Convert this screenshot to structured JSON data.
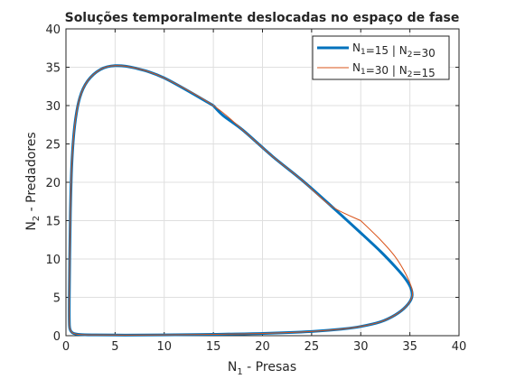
{
  "chart_data": {
    "type": "line",
    "title": "Soluções temporalmente deslocadas no espaço de fase",
    "xlabel": {
      "main": "N",
      "sub": "1",
      "rest": " - Presas"
    },
    "ylabel": {
      "main": "N",
      "sub": "2",
      "rest": " - Predadores"
    },
    "xlim": [
      0,
      40
    ],
    "ylim": [
      0,
      40
    ],
    "xticks": [
      "0",
      "5",
      "10",
      "15",
      "20",
      "25",
      "30",
      "35",
      "40"
    ],
    "yticks": [
      "0",
      "5",
      "10",
      "15",
      "20",
      "25",
      "30",
      "35",
      "40"
    ],
    "grid": true,
    "legend_position": "top-right",
    "series": [
      {
        "legend": [
          {
            "t": "N",
            "sub": false
          },
          {
            "t": "1",
            "sub": true
          },
          {
            "t": "=15 | N",
            "sub": false
          },
          {
            "t": "2",
            "sub": true
          },
          {
            "t": "=30",
            "sub": false
          }
        ],
        "color": "#0072bd",
        "width": 3,
        "points": [
          [
            15,
            30
          ],
          [
            10,
            33.6
          ],
          [
            7,
            34.9
          ],
          [
            5,
            35.2
          ],
          [
            3.5,
            34.7
          ],
          [
            2.2,
            33.2
          ],
          [
            1.4,
            31
          ],
          [
            0.9,
            27.5
          ],
          [
            0.6,
            22.5
          ],
          [
            0.45,
            16
          ],
          [
            0.38,
            10
          ],
          [
            0.34,
            5
          ],
          [
            0.34,
            2
          ],
          [
            0.4,
            0.9
          ],
          [
            0.7,
            0.35
          ],
          [
            1.5,
            0.15
          ],
          [
            3,
            0.1
          ],
          [
            6,
            0.08
          ],
          [
            10,
            0.1
          ],
          [
            15,
            0.18
          ],
          [
            20,
            0.3
          ],
          [
            25,
            0.55
          ],
          [
            28,
            0.85
          ],
          [
            30,
            1.2
          ],
          [
            32,
            1.8
          ],
          [
            33.5,
            2.7
          ],
          [
            34.6,
            3.8
          ],
          [
            35.2,
            5
          ],
          [
            35.1,
            6.2
          ],
          [
            34.5,
            7.5
          ],
          [
            33.5,
            9
          ],
          [
            32,
            11
          ],
          [
            30,
            13.4
          ],
          [
            27,
            16.9
          ],
          [
            24,
            20.3
          ],
          [
            21,
            23.4
          ],
          [
            18,
            26.8
          ],
          [
            16,
            28.7
          ],
          [
            15,
            30
          ]
        ]
      },
      {
        "legend": [
          {
            "t": "N",
            "sub": false
          },
          {
            "t": "1",
            "sub": true
          },
          {
            "t": "=30 | N",
            "sub": false
          },
          {
            "t": "2",
            "sub": true
          },
          {
            "t": "=15",
            "sub": false
          }
        ],
        "color": "#d95319",
        "width": 1,
        "points": [
          [
            30,
            15
          ],
          [
            32,
            12.5
          ],
          [
            33.5,
            10.3
          ],
          [
            34.6,
            8
          ],
          [
            35.2,
            6.1
          ],
          [
            35.2,
            5
          ],
          [
            34.6,
            3.8
          ],
          [
            33.5,
            2.7
          ],
          [
            32,
            1.8
          ],
          [
            30,
            1.2
          ],
          [
            28,
            0.85
          ],
          [
            25,
            0.55
          ],
          [
            20,
            0.3
          ],
          [
            15,
            0.18
          ],
          [
            10,
            0.1
          ],
          [
            6,
            0.08
          ],
          [
            3,
            0.1
          ],
          [
            1.5,
            0.15
          ],
          [
            0.7,
            0.35
          ],
          [
            0.4,
            0.9
          ],
          [
            0.34,
            2
          ],
          [
            0.34,
            5
          ],
          [
            0.38,
            10
          ],
          [
            0.45,
            16
          ],
          [
            0.6,
            22.5
          ],
          [
            0.9,
            27.5
          ],
          [
            1.4,
            31
          ],
          [
            2.2,
            33.2
          ],
          [
            3.5,
            34.7
          ],
          [
            5,
            35.2
          ],
          [
            7,
            34.9
          ],
          [
            10,
            33.6
          ],
          [
            15,
            30
          ],
          [
            18,
            26.8
          ],
          [
            21,
            23.4
          ],
          [
            24,
            20.3
          ],
          [
            27,
            16.9
          ],
          [
            30,
            15
          ]
        ]
      }
    ]
  }
}
